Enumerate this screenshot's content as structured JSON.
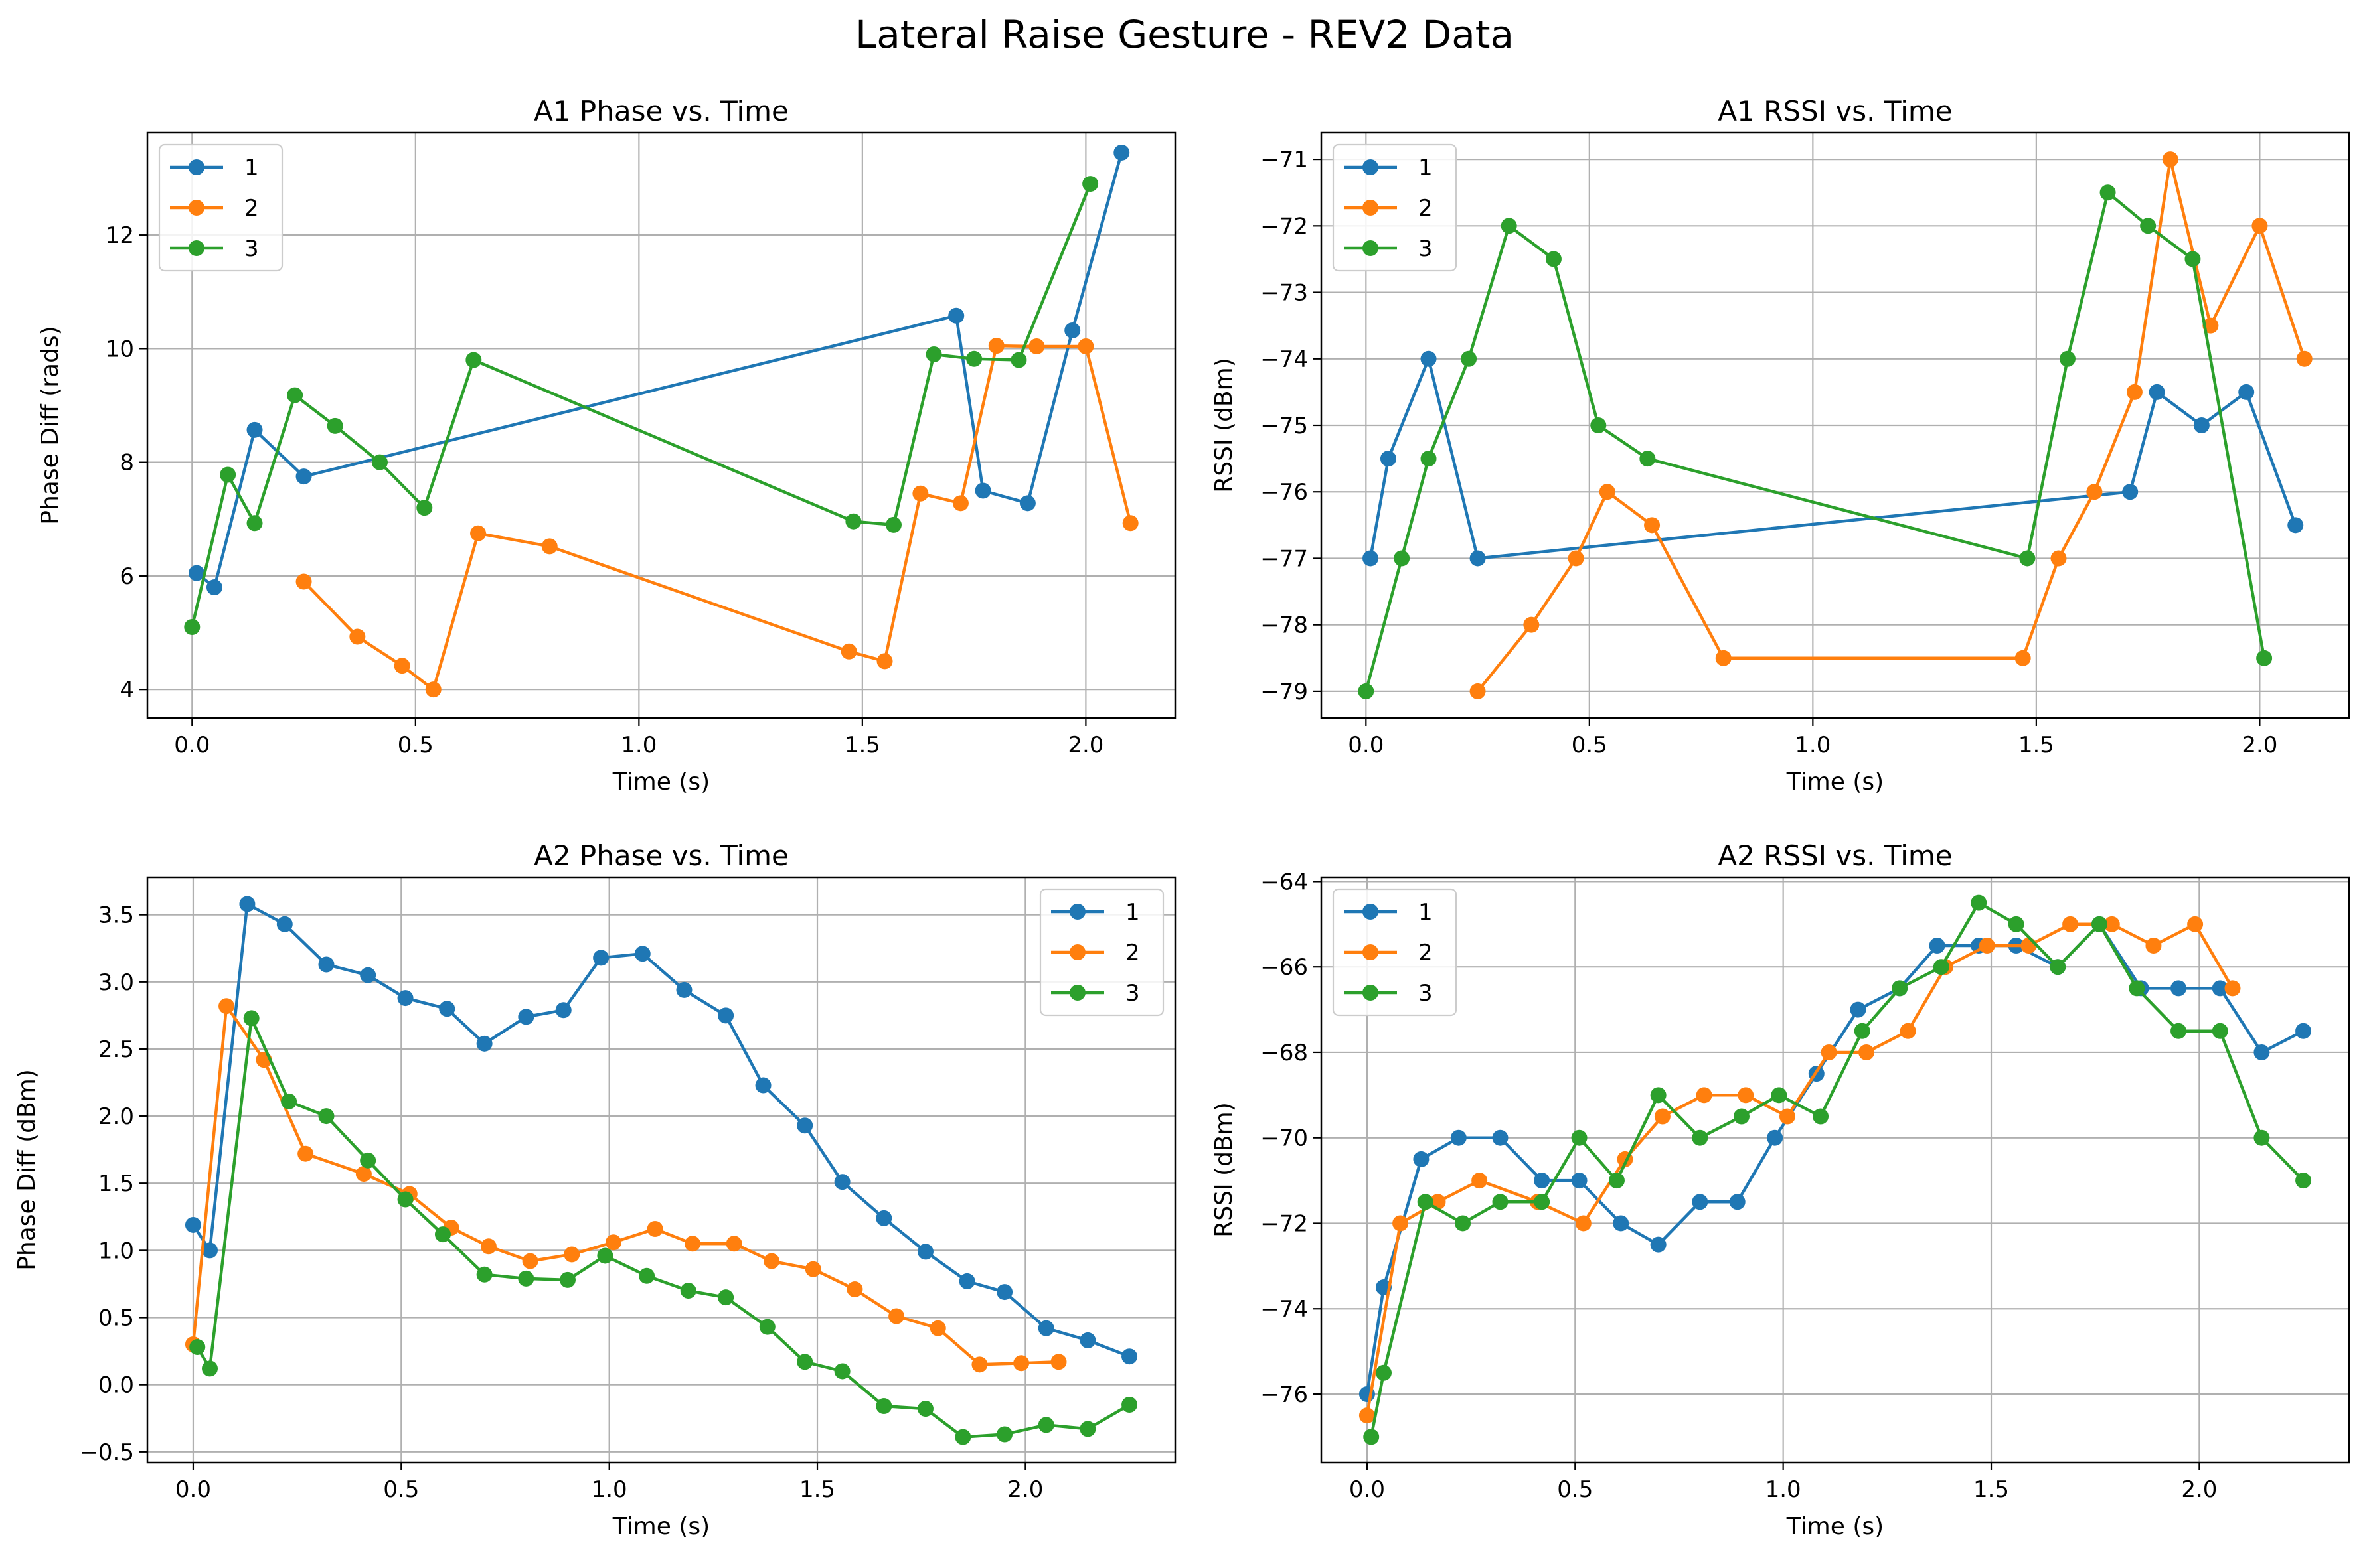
{
  "figure": {
    "suptitle": "Lateral Raise Gesture - REV2 Data"
  },
  "colors": {
    "s1": "#1f77b4",
    "s2": "#ff7f0e",
    "s3": "#2ca02c",
    "grid": "#b0b0b0"
  },
  "chart_data": [
    {
      "id": "a1-phase",
      "type": "line",
      "title": "A1 Phase vs. Time",
      "xlabel": "Time (s)",
      "ylabel": "Phase Diff (rads)",
      "xlim": [
        -0.1,
        2.2
      ],
      "ylim": [
        3.5,
        13.8
      ],
      "xticks": [
        0.0,
        0.5,
        1.0,
        1.5,
        2.0
      ],
      "xtick_labels": [
        "0.0",
        "0.5",
        "1.0",
        "1.5",
        "2.0"
      ],
      "yticks": [
        4,
        6,
        8,
        10,
        12
      ],
      "ytick_labels": [
        "4",
        "6",
        "8",
        "10",
        "12"
      ],
      "grid": true,
      "legend": "top-left",
      "series": [
        {
          "name": "1",
          "x": [
            0.01,
            0.05,
            0.14,
            0.25,
            1.71,
            1.77,
            1.87,
            1.97,
            2.08
          ],
          "y": [
            6.05,
            5.8,
            8.57,
            7.75,
            10.58,
            7.5,
            7.28,
            10.32,
            13.45
          ]
        },
        {
          "name": "2",
          "x": [
            0.25,
            0.37,
            0.47,
            0.54,
            0.64,
            0.8,
            1.47,
            1.55,
            1.63,
            1.72,
            1.8,
            1.89,
            2.0,
            2.1
          ],
          "y": [
            5.9,
            4.93,
            4.42,
            4.0,
            6.75,
            6.52,
            4.67,
            4.5,
            7.45,
            7.28,
            10.05,
            10.04,
            10.04,
            6.93
          ]
        },
        {
          "name": "3",
          "x": [
            0.0,
            0.08,
            0.14,
            0.23,
            0.32,
            0.42,
            0.52,
            0.63,
            1.48,
            1.57,
            1.66,
            1.75,
            1.85,
            2.01
          ],
          "y": [
            5.1,
            7.78,
            6.93,
            9.18,
            8.64,
            8.0,
            7.2,
            9.8,
            6.96,
            6.9,
            9.9,
            9.82,
            9.8,
            12.9
          ]
        }
      ]
    },
    {
      "id": "a1-rssi",
      "type": "line",
      "title": "A1 RSSI vs. Time",
      "xlabel": "Time (s)",
      "ylabel": "RSSI (dBm)",
      "xlim": [
        -0.1,
        2.2
      ],
      "ylim": [
        -79.4,
        -70.6
      ],
      "xticks": [
        0.0,
        0.5,
        1.0,
        1.5,
        2.0
      ],
      "xtick_labels": [
        "0.0",
        "0.5",
        "1.0",
        "1.5",
        "2.0"
      ],
      "yticks": [
        -79,
        -78,
        -77,
        -76,
        -75,
        -74,
        -73,
        -72,
        -71
      ],
      "ytick_labels": [
        "−79",
        "−78",
        "−77",
        "−76",
        "−75",
        "−74",
        "−73",
        "−72",
        "−71"
      ],
      "grid": true,
      "legend": "top-left",
      "series": [
        {
          "name": "1",
          "x": [
            0.01,
            0.05,
            0.14,
            0.25,
            1.71,
            1.77,
            1.87,
            1.97,
            2.08
          ],
          "y": [
            -77,
            -75.5,
            -74,
            -77,
            -76,
            -74.5,
            -75,
            -74.5,
            -76.5
          ]
        },
        {
          "name": "2",
          "x": [
            0.25,
            0.37,
            0.47,
            0.54,
            0.64,
            0.8,
            1.47,
            1.55,
            1.63,
            1.72,
            1.8,
            1.89,
            2.0,
            2.1
          ],
          "y": [
            -79,
            -78,
            -77,
            -76,
            -76.5,
            -78.5,
            -78.5,
            -77,
            -76,
            -74.5,
            -71,
            -73.5,
            -72,
            -74
          ]
        },
        {
          "name": "3",
          "x": [
            0.0,
            0.08,
            0.14,
            0.23,
            0.32,
            0.42,
            0.52,
            0.63,
            1.48,
            1.57,
            1.66,
            1.75,
            1.85,
            2.01
          ],
          "y": [
            -79,
            -77,
            -75.5,
            -74,
            -72,
            -72.5,
            -75,
            -75.5,
            -77,
            -74,
            -71.5,
            -72,
            -72.5,
            -78.5
          ]
        }
      ]
    },
    {
      "id": "a2-phase",
      "type": "line",
      "title": "A2 Phase vs. Time",
      "xlabel": "Time (s)",
      "ylabel": "Phase Diff (dBm)",
      "xlim": [
        -0.11,
        2.36
      ],
      "ylim": [
        -0.58,
        3.78
      ],
      "xticks": [
        0.0,
        0.5,
        1.0,
        1.5,
        2.0
      ],
      "xtick_labels": [
        "0.0",
        "0.5",
        "1.0",
        "1.5",
        "2.0"
      ],
      "yticks": [
        -0.5,
        0.0,
        0.5,
        1.0,
        1.5,
        2.0,
        2.5,
        3.0,
        3.5
      ],
      "ytick_labels": [
        "−0.5",
        "0.0",
        "0.5",
        "1.0",
        "1.5",
        "2.0",
        "2.5",
        "3.0",
        "3.5"
      ],
      "grid": true,
      "legend": "top-right",
      "series": [
        {
          "name": "1",
          "x": [
            0.0,
            0.04,
            0.13,
            0.22,
            0.32,
            0.42,
            0.51,
            0.61,
            0.7,
            0.8,
            0.89,
            0.98,
            1.08,
            1.18,
            1.28,
            1.37,
            1.47,
            1.56,
            1.66,
            1.76,
            1.86,
            1.95,
            2.05,
            2.15,
            2.25
          ],
          "y": [
            1.19,
            1.0,
            3.58,
            3.43,
            3.13,
            3.05,
            2.88,
            2.8,
            2.54,
            2.74,
            2.79,
            3.18,
            3.21,
            2.94,
            2.75,
            2.23,
            1.93,
            1.51,
            1.24,
            0.99,
            0.77,
            0.69,
            0.42,
            0.33,
            0.21
          ]
        },
        {
          "name": "2",
          "x": [
            0.0,
            0.08,
            0.17,
            0.27,
            0.41,
            0.52,
            0.62,
            0.71,
            0.81,
            0.91,
            1.01,
            1.11,
            1.2,
            1.3,
            1.39,
            1.49,
            1.59,
            1.69,
            1.79,
            1.89,
            1.99,
            2.08
          ],
          "y": [
            0.3,
            2.82,
            2.42,
            1.72,
            1.57,
            1.42,
            1.17,
            1.03,
            0.92,
            0.97,
            1.06,
            1.16,
            1.05,
            1.05,
            0.92,
            0.86,
            0.71,
            0.51,
            0.42,
            0.15,
            0.16,
            0.17
          ]
        },
        {
          "name": "3",
          "x": [
            0.01,
            0.04,
            0.14,
            0.23,
            0.32,
            0.42,
            0.51,
            0.6,
            0.7,
            0.8,
            0.9,
            0.99,
            1.09,
            1.19,
            1.28,
            1.38,
            1.47,
            1.56,
            1.66,
            1.76,
            1.85,
            1.95,
            2.05,
            2.15,
            2.25
          ],
          "y": [
            0.28,
            0.12,
            2.73,
            2.11,
            2.0,
            1.67,
            1.38,
            1.12,
            0.82,
            0.79,
            0.78,
            0.96,
            0.81,
            0.7,
            0.65,
            0.43,
            0.17,
            0.1,
            -0.16,
            -0.18,
            -0.39,
            -0.37,
            -0.3,
            -0.33,
            -0.15
          ]
        }
      ]
    },
    {
      "id": "a2-rssi",
      "type": "line",
      "title": "A2 RSSI vs. Time",
      "xlabel": "Time (s)",
      "ylabel": "RSSI (dBm)",
      "xlim": [
        -0.11,
        2.36
      ],
      "ylim": [
        -77.6,
        -63.9
      ],
      "xticks": [
        0.0,
        0.5,
        1.0,
        1.5,
        2.0
      ],
      "xtick_labels": [
        "0.0",
        "0.5",
        "1.0",
        "1.5",
        "2.0"
      ],
      "yticks": [
        -76,
        -74,
        -72,
        -70,
        -68,
        -66,
        -64
      ],
      "ytick_labels": [
        "−76",
        "−74",
        "−72",
        "−70",
        "−68",
        "−66",
        "−64"
      ],
      "grid": true,
      "legend": "top-left",
      "series": [
        {
          "name": "1",
          "x": [
            0.0,
            0.04,
            0.13,
            0.22,
            0.32,
            0.42,
            0.51,
            0.61,
            0.7,
            0.8,
            0.89,
            0.98,
            1.08,
            1.18,
            1.28,
            1.37,
            1.47,
            1.56,
            1.66,
            1.76,
            1.86,
            1.95,
            2.05,
            2.15,
            2.25
          ],
          "y": [
            -76,
            -73.5,
            -70.5,
            -70,
            -70,
            -71,
            -71,
            -72,
            -72.5,
            -71.5,
            -71.5,
            -70,
            -68.5,
            -67,
            -66.5,
            -65.5,
            -65.5,
            -65.5,
            -66,
            -65,
            -66.5,
            -66.5,
            -66.5,
            -68,
            -67.5
          ]
        },
        {
          "name": "2",
          "x": [
            0.0,
            0.08,
            0.17,
            0.27,
            0.41,
            0.52,
            0.62,
            0.71,
            0.81,
            0.91,
            1.01,
            1.11,
            1.2,
            1.3,
            1.39,
            1.49,
            1.59,
            1.69,
            1.79,
            1.89,
            1.99,
            2.08
          ],
          "y": [
            -76.5,
            -72,
            -71.5,
            -71,
            -71.5,
            -72,
            -70.5,
            -69.5,
            -69,
            -69,
            -69.5,
            -68,
            -68,
            -67.5,
            -66,
            -65.5,
            -65.5,
            -65,
            -65,
            -65.5,
            -65,
            -66.5
          ]
        },
        {
          "name": "3",
          "x": [
            0.01,
            0.04,
            0.14,
            0.23,
            0.32,
            0.42,
            0.51,
            0.6,
            0.7,
            0.8,
            0.9,
            0.99,
            1.09,
            1.19,
            1.28,
            1.38,
            1.47,
            1.56,
            1.66,
            1.76,
            1.85,
            1.95,
            2.05,
            2.15,
            2.25
          ],
          "y": [
            -77,
            -75.5,
            -71.5,
            -72,
            -71.5,
            -71.5,
            -70,
            -71,
            -69,
            -70,
            -69.5,
            -69,
            -69.5,
            -67.5,
            -66.5,
            -66,
            -64.5,
            -65,
            -66,
            -65,
            -66.5,
            -67.5,
            -67.5,
            -70,
            -71
          ]
        }
      ]
    }
  ]
}
